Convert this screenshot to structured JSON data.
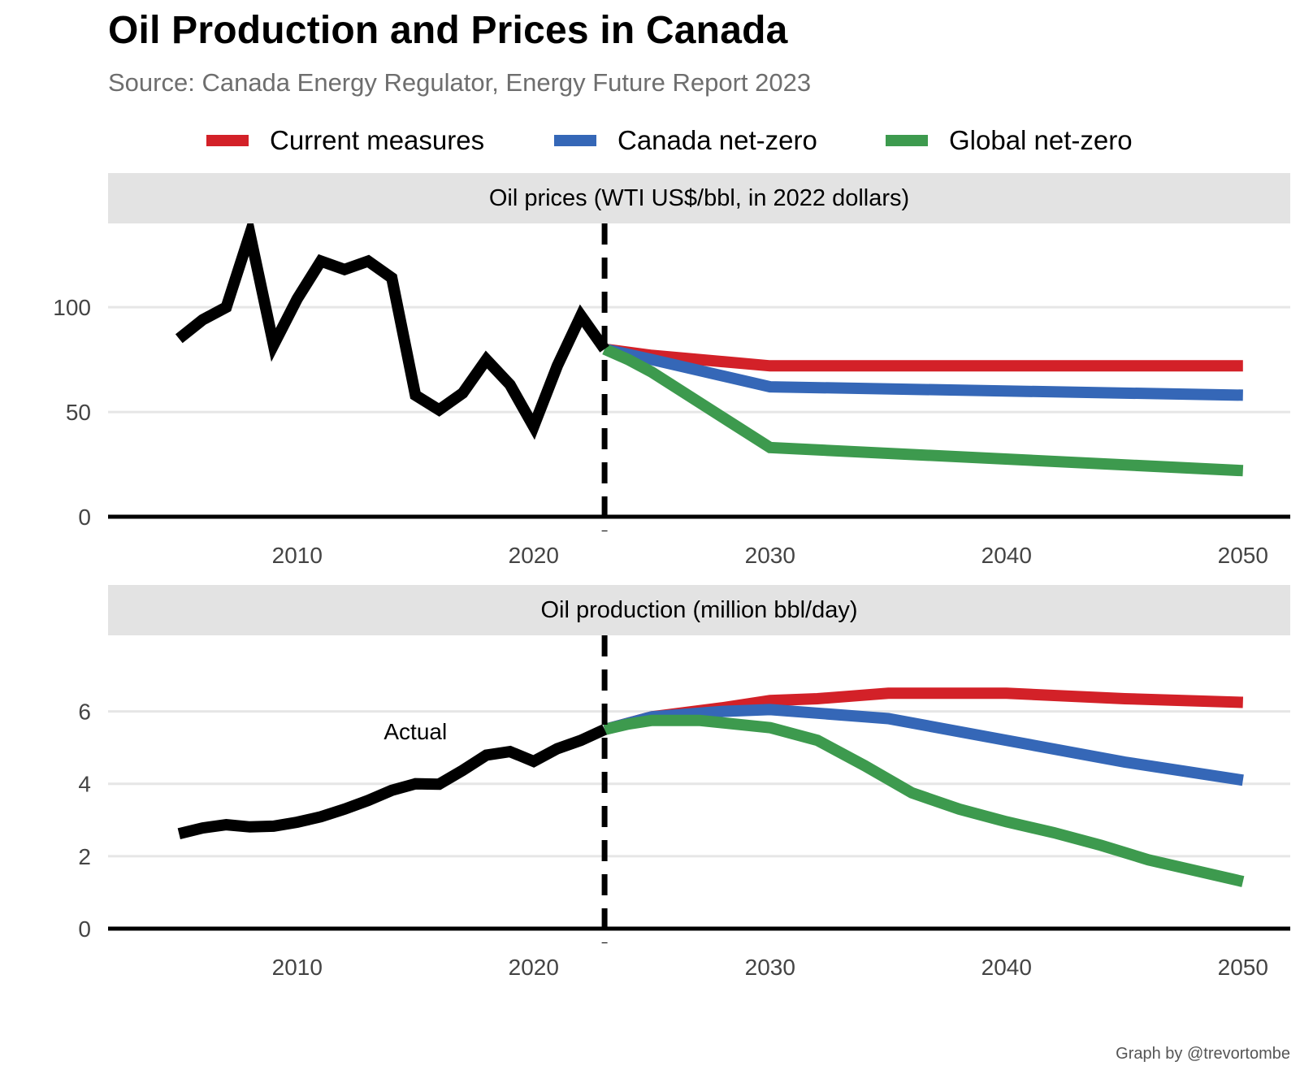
{
  "title": "Oil Production and Prices in Canada",
  "subtitle": "Source: Canada Energy Regulator, Energy Future Report 2023",
  "credit": "Graph by @trevortombe",
  "legend": [
    {
      "label": "Current measures",
      "color": "#d32128"
    },
    {
      "label": "Canada net-zero",
      "color": "#3567b7"
    },
    {
      "label": "Global net-zero",
      "color": "#3d9a4e"
    }
  ],
  "chart_data": [
    {
      "type": "line",
      "panel": "Oil prices (WTI US$/bbl, in 2022 dollars)",
      "xlim": [
        2002,
        2052
      ],
      "ylim": [
        0,
        140
      ],
      "x_ticks": [
        2010,
        2020,
        2030,
        2040,
        2050
      ],
      "y_ticks": [
        0,
        50,
        100
      ],
      "vline_x": 2023,
      "grid": "horizontal",
      "actual": {
        "x": [
          2005,
          2006,
          2007,
          2008,
          2009,
          2010,
          2011,
          2012,
          2013,
          2014,
          2015,
          2016,
          2017,
          2018,
          2019,
          2020,
          2021,
          2022,
          2023
        ],
        "y": [
          85,
          94,
          100,
          135,
          82,
          104,
          122,
          118,
          122,
          114,
          58,
          51,
          59,
          75,
          63,
          43,
          72,
          96,
          80
        ]
      },
      "series": [
        {
          "name": "Current measures",
          "color": "#d32128",
          "x": [
            2023,
            2025,
            2030,
            2050
          ],
          "y": [
            80,
            77,
            72,
            72
          ]
        },
        {
          "name": "Canada net-zero",
          "color": "#3567b7",
          "x": [
            2023,
            2025,
            2030,
            2050
          ],
          "y": [
            80,
            75,
            62,
            58
          ]
        },
        {
          "name": "Global net-zero",
          "color": "#3d9a4e",
          "x": [
            2023,
            2024,
            2025,
            2030,
            2050
          ],
          "y": [
            80,
            75,
            69,
            33,
            22
          ]
        }
      ]
    },
    {
      "type": "line",
      "panel": "Oil production (million bbl/day)",
      "xlim": [
        2002,
        2052
      ],
      "ylim": [
        0,
        8.1
      ],
      "x_ticks": [
        2010,
        2020,
        2030,
        2040,
        2050
      ],
      "y_ticks": [
        0,
        2,
        4,
        6
      ],
      "vline_x": 2023,
      "grid": "horizontal",
      "annotation": {
        "text": "Actual",
        "x": 2015,
        "y": 5.45
      },
      "actual": {
        "x": [
          2005,
          2006,
          2007,
          2008,
          2009,
          2010,
          2011,
          2012,
          2013,
          2014,
          2015,
          2016,
          2017,
          2018,
          2019,
          2020,
          2021,
          2022,
          2023
        ],
        "y": [
          2.62,
          2.78,
          2.87,
          2.81,
          2.83,
          2.94,
          3.09,
          3.3,
          3.54,
          3.82,
          4.0,
          3.99,
          4.37,
          4.79,
          4.89,
          4.62,
          4.97,
          5.2,
          5.5
        ]
      },
      "series": [
        {
          "name": "Current measures",
          "color": "#d32128",
          "x": [
            2023,
            2025,
            2028,
            2030,
            2032,
            2035,
            2040,
            2045,
            2050
          ],
          "y": [
            5.5,
            5.85,
            6.1,
            6.3,
            6.35,
            6.5,
            6.5,
            6.35,
            6.25
          ]
        },
        {
          "name": "Canada net-zero",
          "color": "#3567b7",
          "x": [
            2023,
            2025,
            2028,
            2030,
            2032,
            2035,
            2040,
            2045,
            2050
          ],
          "y": [
            5.5,
            5.85,
            6.0,
            6.05,
            5.95,
            5.8,
            5.2,
            4.6,
            4.1
          ]
        },
        {
          "name": "Global net-zero",
          "color": "#3d9a4e",
          "x": [
            2023,
            2024,
            2025,
            2027,
            2030,
            2032,
            2034,
            2036,
            2038,
            2040,
            2042,
            2044,
            2046,
            2048,
            2050
          ],
          "y": [
            5.5,
            5.65,
            5.75,
            5.75,
            5.55,
            5.2,
            4.5,
            3.75,
            3.3,
            2.95,
            2.65,
            2.3,
            1.9,
            1.6,
            1.3
          ]
        }
      ]
    }
  ]
}
